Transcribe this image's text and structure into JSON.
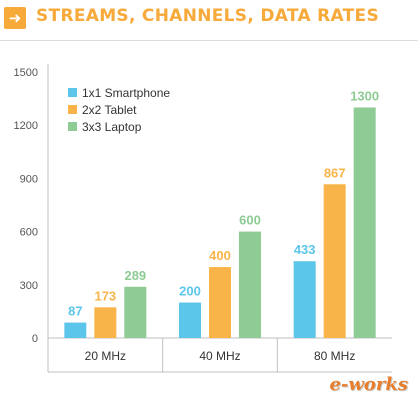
{
  "header": {
    "icon": "arrow-right-icon",
    "title": "STREAMS, CHANNELS, DATA RATES"
  },
  "colors": {
    "accent": "#f7a93a",
    "series": [
      "#5bc6ea",
      "#f8b449",
      "#8ecb95"
    ]
  },
  "chart_data": {
    "type": "bar",
    "title": "STREAMS, CHANNELS, DATA RATES",
    "xlabel": "",
    "ylabel": "",
    "categories": [
      "20 MHz",
      "40 MHz",
      "80 MHz"
    ],
    "series": [
      {
        "name": "1x1 Smartphone",
        "values": [
          87,
          200,
          433
        ]
      },
      {
        "name": "2x2 Tablet",
        "values": [
          173,
          400,
          867
        ]
      },
      {
        "name": "3x3 Laptop",
        "values": [
          289,
          600,
          1300
        ]
      }
    ],
    "ylim": [
      0,
      1500
    ],
    "yticks": [
      0,
      300,
      600,
      900,
      1200,
      1500
    ],
    "grid": false,
    "legend": "top-left",
    "data_labels": true
  },
  "watermark": "e-works"
}
